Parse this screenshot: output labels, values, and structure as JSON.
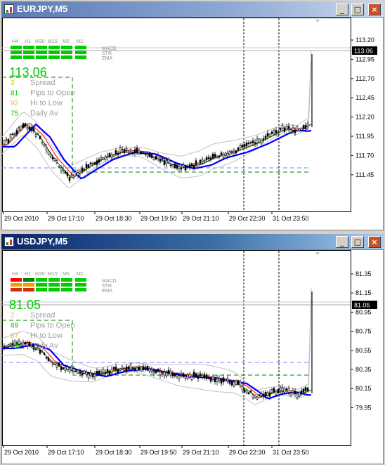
{
  "windows": [
    {
      "title": "EURJPY,M5",
      "timeframes": [
        "H4",
        "H1",
        "M30",
        "M15",
        "M5",
        "M1"
      ],
      "indicator_rows": [
        "MACD",
        "STR",
        "EMA"
      ],
      "row_colors": [
        [
          "#00cc00",
          "#00cc00",
          "#00cc00",
          "#00cc00",
          "#00cc00",
          "#00cc00"
        ],
        [
          "#00cc00",
          "#00cc00",
          "#00cc00",
          "#00cc00",
          "#00cc00",
          "#00cc00"
        ],
        [
          "#00cc00",
          "#00cc00",
          "#00cc00",
          "#00cc00",
          "#00cc00",
          "#00cc00"
        ]
      ],
      "price": "113.06",
      "stats": [
        {
          "value": "3",
          "label": "Spread",
          "color": "#e6c300"
        },
        {
          "value": "81",
          "label": "Pips to Open",
          "color": "#00cc00"
        },
        {
          "value": "92",
          "label": "Hi to Low",
          "color": "#e6c300"
        },
        {
          "value": "75",
          "label": "Daily Av",
          "color": "#00cc00"
        }
      ],
      "price_axis": [
        "113.20",
        "112.95",
        "112.70",
        "112.45",
        "112.20",
        "111.95",
        "111.70",
        "111.45"
      ],
      "current_price_label": "113.06",
      "time_axis": [
        "29 Oct 2010",
        "29 Oct 17:10",
        "29 Oct 18:30",
        "29 Oct 19:50",
        "29 Oct 21:10",
        "29 Oct 22:30",
        "31 Oct 23:50"
      ]
    },
    {
      "title": "USDJPY,M5",
      "timeframes": [
        "H4",
        "H1",
        "M30",
        "M15",
        "M5",
        "M1"
      ],
      "indicator_rows": [
        "MACD",
        "STR",
        "EMA"
      ],
      "row_colors": [
        [
          "#ff0000",
          "#008000",
          "#00cc00",
          "#00cc00",
          "#00cc00",
          "#00cc00"
        ],
        [
          "#ff9900",
          "#ff9900",
          "#00cc00",
          "#00cc00",
          "#00cc00",
          "#00cc00"
        ],
        [
          "#cc3300",
          "#cc3300",
          "#00cc00",
          "#00cc00",
          "#00cc00",
          "#00cc00"
        ]
      ],
      "price": "81.05",
      "stats": [
        {
          "value": "2",
          "label": "Spread",
          "color": "#e6c300"
        },
        {
          "value": "69",
          "label": "Pips to Open",
          "color": "#00cc00"
        },
        {
          "value": "87",
          "label": "Hi to Low",
          "color": "#e6c300"
        },
        {
          "value": "51",
          "label": "Daily Av",
          "color": "#00cc00"
        }
      ],
      "price_axis": [
        "81.35",
        "81.15",
        "80.95",
        "80.75",
        "80.55",
        "80.35",
        "80.15",
        "79.95"
      ],
      "current_price_label": "81.05",
      "time_axis": [
        "29 Oct 2010",
        "29 Oct 17:10",
        "29 Oct 18:30",
        "29 Oct 19:50",
        "29 Oct 21:10",
        "29 Oct 22:30",
        "31 Oct 23:50"
      ]
    }
  ],
  "window_buttons": {
    "minimize": "_",
    "maximize": "□",
    "close": "×"
  },
  "colors": {
    "bull_candle": "#000000",
    "ema_fast": "#0000ff",
    "ema_slow": "#ff0000",
    "ma_green": "#008000",
    "band": "#c0c0c0",
    "open_line": "#8080ff"
  }
}
